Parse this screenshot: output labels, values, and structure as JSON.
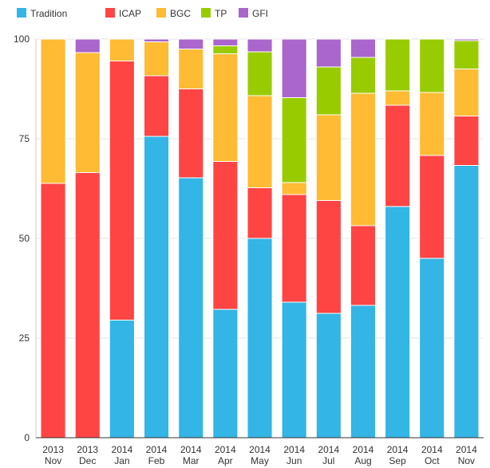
{
  "chart_data": {
    "type": "bar",
    "stacked": true,
    "categories": [
      {
        "year": "2013",
        "month": "Nov"
      },
      {
        "year": "2013",
        "month": "Dec"
      },
      {
        "year": "2014",
        "month": "Jan"
      },
      {
        "year": "2014",
        "month": "Feb"
      },
      {
        "year": "2014",
        "month": "Mar"
      },
      {
        "year": "2014",
        "month": "Apr"
      },
      {
        "year": "2014",
        "month": "May"
      },
      {
        "year": "2014",
        "month": "Jun"
      },
      {
        "year": "2014",
        "month": "Jul"
      },
      {
        "year": "2014",
        "month": "Aug"
      },
      {
        "year": "2014",
        "month": "Sep"
      },
      {
        "year": "2014",
        "month": "Oct"
      },
      {
        "year": "2014",
        "month": "Nov"
      }
    ],
    "series": [
      {
        "name": "Tradition",
        "color": "#33b5e5",
        "values": [
          0,
          0,
          29.5,
          75.6,
          65.2,
          32.2,
          50.0,
          34.0,
          31.2,
          33.2,
          58.0,
          45.0,
          68.3
        ]
      },
      {
        "name": "ICAP",
        "color": "#ff4444",
        "values": [
          63.8,
          66.5,
          65.0,
          15.2,
          22.3,
          37.1,
          12.7,
          27.0,
          28.3,
          20.0,
          25.4,
          25.8,
          12.4
        ]
      },
      {
        "name": "BGC",
        "color": "#ffbb33",
        "values": [
          36.2,
          30.1,
          5.5,
          8.5,
          10.0,
          27.0,
          23.1,
          3.0,
          21.5,
          33.2,
          3.6,
          15.8,
          11.8
        ]
      },
      {
        "name": "TP",
        "color": "#99cc00",
        "values": [
          0,
          0,
          0,
          0,
          0,
          2.0,
          11.0,
          21.3,
          12.0,
          9.0,
          13.0,
          13.4,
          7.1
        ]
      },
      {
        "name": "GFI",
        "color": "#aa66cc",
        "values": [
          0,
          3.4,
          0,
          0.7,
          2.5,
          1.7,
          3.2,
          14.7,
          7.0,
          4.6,
          0,
          0,
          0.4
        ]
      }
    ],
    "ylim": [
      0,
      100
    ],
    "yticks": [
      "0",
      "25",
      "50",
      "75",
      "100"
    ],
    "grid": true,
    "legend": "top-left"
  }
}
